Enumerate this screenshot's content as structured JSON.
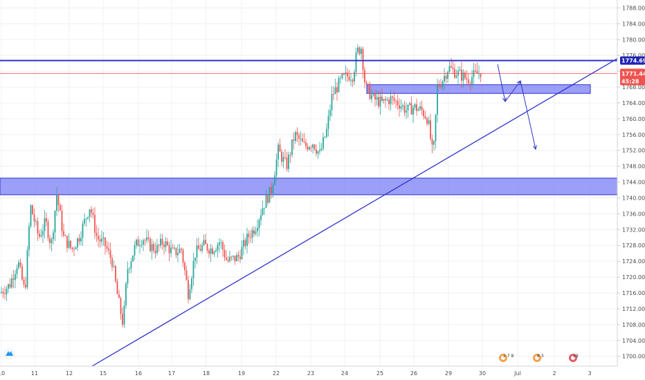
{
  "colors": {
    "up": "#26a69a",
    "down": "#ef5350",
    "drawing": "#2c31c9",
    "zone_fill": "#7b7ff5",
    "grid": "#eef0f4",
    "axis_text": "#4a4a4a",
    "last_price_bg": "#ef5350",
    "level_tag_bg": "#1e23b5"
  },
  "chart_data": {
    "type": "candlestick",
    "title": "",
    "xlabel": "",
    "ylabel": "",
    "ylim": [
      1697.5,
      1790
    ],
    "grid": true,
    "y_ticks": [
      "1788.000",
      "1784.000",
      "1780.000",
      "1776.000",
      "1772.000",
      "1768.000",
      "1764.000",
      "1760.000",
      "1756.000",
      "1752.000",
      "1748.000",
      "1744.000",
      "1740.000",
      "1736.000",
      "1732.000",
      "1728.000",
      "1724.000",
      "1720.000",
      "1716.000",
      "1712.000",
      "1708.000",
      "1704.000",
      "1700.000"
    ],
    "x_ticks": [
      "10",
      "11",
      "12",
      "15",
      "16",
      "17",
      "18",
      "19",
      "22",
      "23",
      "24",
      "25",
      "26",
      "29",
      "30",
      "Jul",
      "2",
      "3"
    ],
    "price_path": [
      [
        0,
        1716
      ],
      [
        14,
        1718
      ],
      [
        26,
        1724
      ],
      [
        36,
        1716
      ],
      [
        44,
        1738
      ],
      [
        56,
        1730
      ],
      [
        66,
        1734
      ],
      [
        74,
        1728
      ],
      [
        82,
        1741
      ],
      [
        92,
        1730
      ],
      [
        104,
        1727
      ],
      [
        114,
        1730
      ],
      [
        124,
        1735
      ],
      [
        130,
        1738
      ],
      [
        140,
        1730
      ],
      [
        152,
        1728
      ],
      [
        162,
        1724
      ],
      [
        170,
        1715
      ],
      [
        178,
        1708
      ],
      [
        184,
        1722
      ],
      [
        196,
        1728
      ],
      [
        206,
        1730
      ],
      [
        216,
        1728
      ],
      [
        226,
        1727
      ],
      [
        236,
        1729
      ],
      [
        250,
        1726
      ],
      [
        262,
        1727
      ],
      [
        272,
        1716
      ],
      [
        282,
        1726
      ],
      [
        294,
        1728
      ],
      [
        306,
        1727
      ],
      [
        318,
        1729
      ],
      [
        328,
        1724
      ],
      [
        344,
        1725
      ],
      [
        358,
        1730
      ],
      [
        370,
        1733
      ],
      [
        380,
        1738
      ],
      [
        392,
        1742
      ],
      [
        402,
        1752
      ],
      [
        414,
        1748
      ],
      [
        426,
        1756
      ],
      [
        440,
        1753
      ],
      [
        452,
        1754
      ],
      [
        462,
        1751
      ],
      [
        472,
        1757
      ],
      [
        480,
        1766
      ],
      [
        494,
        1770
      ],
      [
        504,
        1771
      ],
      [
        510,
        1771
      ],
      [
        516,
        1777
      ],
      [
        522,
        1778
      ],
      [
        528,
        1768
      ],
      [
        540,
        1765
      ],
      [
        552,
        1764
      ],
      [
        564,
        1765
      ],
      [
        576,
        1764
      ],
      [
        588,
        1762
      ],
      [
        598,
        1763
      ],
      [
        610,
        1762
      ],
      [
        618,
        1760
      ],
      [
        626,
        1750
      ],
      [
        632,
        1768
      ],
      [
        640,
        1770
      ],
      [
        648,
        1773
      ],
      [
        656,
        1772
      ],
      [
        666,
        1771
      ],
      [
        676,
        1770
      ],
      [
        686,
        1771
      ],
      [
        696,
        1772
      ]
    ],
    "resistance_level": 1774.699,
    "last_price": 1771.444,
    "countdown": "45:28",
    "zones": [
      {
        "name": "support-zone",
        "from": 1740.8,
        "to": 1745.0
      },
      {
        "name": "resistance-zone",
        "from": 1766.4,
        "to": 1768.6
      }
    ],
    "annotations": [
      "trendline",
      "arrow-down-to-zone",
      "arrow-up-to-zone",
      "arrow-down-break"
    ]
  },
  "events": [
    {
      "name": "event-flag-1",
      "label": "2 7 8"
    },
    {
      "name": "event-flag-2",
      "label": "8 3"
    },
    {
      "name": "event-flag-3",
      "label": "29"
    }
  ],
  "logo_icon": "tradingview-logo-icon"
}
